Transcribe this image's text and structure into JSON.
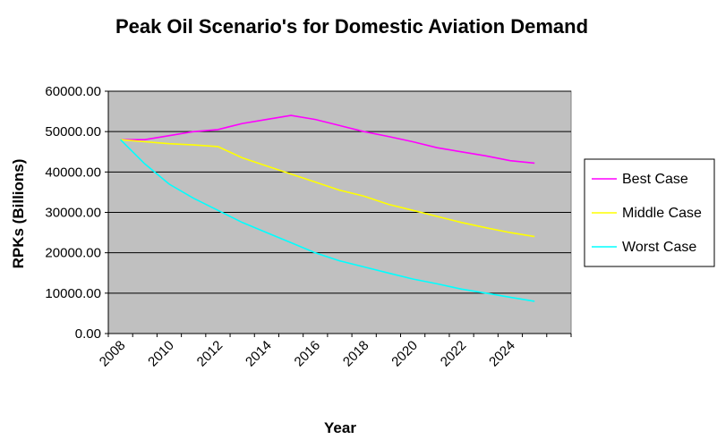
{
  "chart_data": {
    "type": "line",
    "title": "Peak Oil Scenario's for Domestic Aviation Demand",
    "xlabel": "Year",
    "ylabel": "RPKs (Billions)",
    "ylim": [
      0,
      60000
    ],
    "y_ticks": [
      "0.00",
      "10000.00",
      "20000.00",
      "30000.00",
      "40000.00",
      "50000.00",
      "60000.00"
    ],
    "x_tick_labels": [
      "2008",
      "2010",
      "2012",
      "2014",
      "2016",
      "2018",
      "2020",
      "2022",
      "2024"
    ],
    "x": [
      2008,
      2009,
      2010,
      2011,
      2012,
      2013,
      2014,
      2015,
      2016,
      2017,
      2018,
      2019,
      2020,
      2021,
      2022,
      2023,
      2024,
      2025
    ],
    "grid": true,
    "legend_position": "right",
    "plot_background": "#c0c0c0",
    "series": [
      {
        "name": "Best Case",
        "color": "#ff00ff",
        "values": [
          48000,
          48000,
          49000,
          50000,
          50500,
          52000,
          53000,
          54000,
          53000,
          51500,
          50000,
          48800,
          47500,
          46000,
          45000,
          44000,
          42800,
          42200
        ]
      },
      {
        "name": "Middle Case",
        "color": "#ffff00",
        "values": [
          48000,
          47500,
          47000,
          46700,
          46300,
          43500,
          41500,
          39500,
          37500,
          35500,
          34000,
          32000,
          30500,
          29000,
          27500,
          26200,
          25000,
          24000
        ]
      },
      {
        "name": "Worst Case",
        "color": "#00ffff",
        "values": [
          48000,
          42000,
          37000,
          33500,
          30500,
          27500,
          25000,
          22500,
          20000,
          18000,
          16500,
          15000,
          13500,
          12300,
          11000,
          10000,
          9000,
          8000
        ]
      }
    ]
  }
}
